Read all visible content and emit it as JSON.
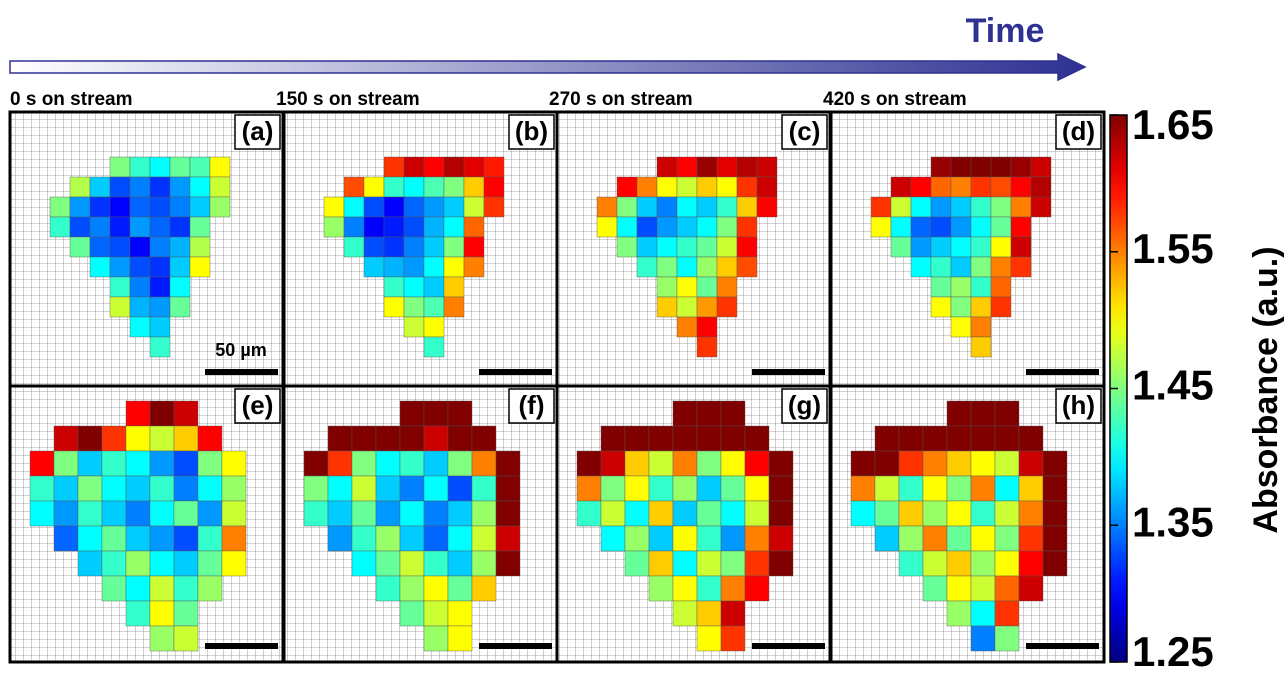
{
  "chart_data": {
    "type": "heatmap",
    "title": "Time",
    "colorbar_label": "Absorbance (a.u.)",
    "colormap": "jet",
    "zlim": [
      1.25,
      1.65
    ],
    "zticks": [
      1.25,
      1.35,
      1.45,
      1.55,
      1.65
    ],
    "scale_bar_label": "50 µm",
    "panels": [
      {
        "title": "0 s on stream",
        "label": "(a)",
        "values": [
          [
            null,
            null,
            null,
            1.45,
            1.42,
            1.4,
            1.44,
            1.43,
            1.5,
            null
          ],
          [
            null,
            1.47,
            1.38,
            1.33,
            1.35,
            1.32,
            1.36,
            1.4,
            1.48,
            null
          ],
          [
            1.45,
            1.36,
            1.32,
            1.3,
            1.34,
            1.33,
            1.35,
            1.38,
            1.46,
            null
          ],
          [
            1.42,
            1.33,
            1.35,
            1.31,
            1.36,
            1.34,
            1.32,
            1.44,
            null,
            null
          ],
          [
            null,
            1.44,
            1.34,
            1.33,
            1.3,
            1.35,
            1.37,
            1.47,
            null,
            null
          ],
          [
            null,
            null,
            1.4,
            1.36,
            1.33,
            1.32,
            1.38,
            1.5,
            null,
            null
          ],
          [
            null,
            null,
            null,
            1.42,
            1.35,
            1.31,
            1.4,
            null,
            null,
            null
          ],
          [
            null,
            null,
            null,
            1.48,
            1.37,
            1.36,
            1.44,
            null,
            null,
            null
          ],
          [
            null,
            null,
            null,
            null,
            1.4,
            1.38,
            null,
            null,
            null,
            null
          ],
          [
            null,
            null,
            null,
            null,
            null,
            1.42,
            null,
            null,
            null,
            null
          ]
        ]
      },
      {
        "title": "150 s on stream",
        "label": "(b)",
        "values": [
          [
            null,
            null,
            null,
            1.58,
            1.62,
            1.6,
            1.63,
            1.61,
            1.59,
            null
          ],
          [
            null,
            1.57,
            1.5,
            1.42,
            1.4,
            1.43,
            1.45,
            1.52,
            1.6,
            null
          ],
          [
            1.5,
            1.4,
            1.33,
            1.3,
            1.34,
            1.36,
            1.38,
            1.48,
            1.58,
            null
          ],
          [
            1.46,
            1.35,
            1.3,
            1.31,
            1.33,
            1.37,
            1.4,
            1.56,
            null,
            null
          ],
          [
            null,
            1.42,
            1.33,
            1.32,
            1.35,
            1.38,
            1.45,
            1.6,
            null,
            null
          ],
          [
            null,
            null,
            1.38,
            1.37,
            1.36,
            1.4,
            1.5,
            1.55,
            null,
            null
          ],
          [
            null,
            null,
            null,
            1.42,
            1.4,
            1.38,
            1.52,
            null,
            null,
            null
          ],
          [
            null,
            null,
            null,
            1.5,
            1.45,
            1.43,
            1.55,
            null,
            null,
            null
          ],
          [
            null,
            null,
            null,
            null,
            1.48,
            1.5,
            null,
            null,
            null,
            null
          ],
          [
            null,
            null,
            null,
            null,
            null,
            1.42,
            null,
            null,
            null,
            null
          ]
        ]
      },
      {
        "title": "270 s on stream",
        "label": "(c)",
        "values": [
          [
            null,
            null,
            null,
            1.62,
            1.6,
            1.64,
            1.61,
            1.63,
            1.62,
            null
          ],
          [
            null,
            1.6,
            1.55,
            1.5,
            1.48,
            1.52,
            1.5,
            1.58,
            1.62,
            null
          ],
          [
            1.55,
            1.45,
            1.38,
            1.35,
            1.4,
            1.38,
            1.42,
            1.52,
            1.6,
            null
          ],
          [
            1.5,
            1.4,
            1.33,
            1.36,
            1.38,
            1.4,
            1.45,
            1.58,
            null,
            null
          ],
          [
            null,
            1.45,
            1.38,
            1.4,
            1.42,
            1.44,
            1.48,
            1.6,
            null,
            null
          ],
          [
            null,
            null,
            1.42,
            1.45,
            1.4,
            1.46,
            1.52,
            1.57,
            null,
            null
          ],
          [
            null,
            null,
            null,
            1.46,
            1.5,
            1.44,
            1.55,
            null,
            null,
            null
          ],
          [
            null,
            null,
            null,
            1.52,
            1.48,
            1.54,
            1.58,
            null,
            null,
            null
          ],
          [
            null,
            null,
            null,
            null,
            1.55,
            1.6,
            null,
            null,
            null,
            null
          ],
          [
            null,
            null,
            null,
            null,
            null,
            1.58,
            null,
            null,
            null,
            null
          ]
        ]
      },
      {
        "title": "420 s on stream",
        "label": "(d)",
        "values": [
          [
            null,
            null,
            null,
            1.64,
            1.65,
            1.65,
            1.65,
            1.64,
            1.62,
            null
          ],
          [
            null,
            1.62,
            1.6,
            1.56,
            1.55,
            1.58,
            1.57,
            1.6,
            1.63,
            null
          ],
          [
            1.58,
            1.48,
            1.4,
            1.36,
            1.38,
            1.42,
            1.45,
            1.55,
            1.62,
            null
          ],
          [
            1.5,
            1.4,
            1.34,
            1.33,
            1.36,
            1.4,
            1.44,
            1.6,
            null,
            null
          ],
          [
            null,
            1.44,
            1.36,
            1.38,
            1.4,
            1.42,
            1.5,
            1.62,
            null,
            null
          ],
          [
            null,
            null,
            1.4,
            1.42,
            1.38,
            1.45,
            1.55,
            1.58,
            null,
            null
          ],
          [
            null,
            null,
            null,
            1.44,
            1.46,
            1.42,
            1.56,
            null,
            null,
            null
          ],
          [
            null,
            null,
            null,
            1.5,
            1.45,
            1.52,
            1.58,
            null,
            null,
            null
          ],
          [
            null,
            null,
            null,
            null,
            1.5,
            1.55,
            null,
            null,
            null,
            null
          ],
          [
            null,
            null,
            null,
            null,
            null,
            1.52,
            null,
            null,
            null,
            null
          ]
        ]
      },
      {
        "label": "(e)",
        "values": [
          [
            null,
            null,
            null,
            null,
            1.6,
            1.65,
            1.62,
            null,
            null,
            null
          ],
          [
            null,
            1.62,
            1.65,
            1.58,
            1.5,
            1.48,
            1.52,
            1.6,
            null,
            null
          ],
          [
            1.6,
            1.45,
            1.38,
            1.42,
            1.4,
            1.36,
            1.33,
            1.45,
            1.5,
            null
          ],
          [
            1.42,
            1.38,
            1.45,
            1.4,
            1.38,
            1.42,
            1.35,
            1.4,
            1.46,
            null
          ],
          [
            1.4,
            1.36,
            1.42,
            1.38,
            1.35,
            1.4,
            1.44,
            1.36,
            1.48,
            null
          ],
          [
            null,
            1.34,
            1.4,
            1.44,
            1.38,
            1.36,
            1.33,
            1.42,
            1.55,
            null
          ],
          [
            null,
            null,
            1.38,
            1.42,
            1.46,
            1.4,
            1.38,
            1.44,
            1.5,
            null
          ],
          [
            null,
            null,
            null,
            1.44,
            1.4,
            1.48,
            1.42,
            1.46,
            null,
            null
          ],
          [
            null,
            null,
            null,
            null,
            1.42,
            1.5,
            1.44,
            null,
            null,
            null
          ],
          [
            null,
            null,
            null,
            null,
            null,
            1.46,
            1.48,
            null,
            null,
            null
          ]
        ]
      },
      {
        "label": "(f)",
        "values": [
          [
            null,
            null,
            null,
            null,
            1.65,
            1.65,
            1.65,
            null,
            null,
            null
          ],
          [
            null,
            1.65,
            1.65,
            1.65,
            1.65,
            1.62,
            1.65,
            1.65,
            null,
            null
          ],
          [
            1.65,
            1.58,
            1.45,
            1.4,
            1.42,
            1.38,
            1.45,
            1.55,
            1.65,
            null
          ],
          [
            1.45,
            1.4,
            1.48,
            1.38,
            1.35,
            1.4,
            1.33,
            1.42,
            1.65,
            null
          ],
          [
            1.42,
            1.38,
            1.44,
            1.36,
            1.4,
            1.35,
            1.38,
            1.46,
            1.65,
            null
          ],
          [
            null,
            1.36,
            1.42,
            1.46,
            1.38,
            1.34,
            1.4,
            1.48,
            1.62,
            null
          ],
          [
            null,
            null,
            1.4,
            1.44,
            1.48,
            1.42,
            1.38,
            1.46,
            1.65,
            null
          ],
          [
            null,
            null,
            null,
            1.42,
            1.46,
            1.5,
            1.44,
            1.52,
            null,
            null
          ],
          [
            null,
            null,
            null,
            null,
            1.44,
            1.48,
            1.5,
            null,
            null,
            null
          ],
          [
            null,
            null,
            null,
            null,
            null,
            1.46,
            1.5,
            null,
            null,
            null
          ]
        ]
      },
      {
        "label": "(g)",
        "values": [
          [
            null,
            null,
            null,
            null,
            1.65,
            1.65,
            1.65,
            null,
            null,
            null
          ],
          [
            null,
            1.65,
            1.65,
            1.65,
            1.65,
            1.65,
            1.65,
            1.65,
            null,
            null
          ],
          [
            1.65,
            1.62,
            1.52,
            1.48,
            1.55,
            1.45,
            1.5,
            1.6,
            1.65,
            null
          ],
          [
            1.55,
            1.45,
            1.5,
            1.42,
            1.46,
            1.38,
            1.44,
            1.5,
            1.65,
            null
          ],
          [
            1.42,
            1.48,
            1.4,
            1.52,
            1.38,
            1.44,
            1.4,
            1.48,
            1.65,
            null
          ],
          [
            null,
            1.4,
            1.46,
            1.38,
            1.5,
            1.42,
            1.36,
            1.55,
            1.62,
            null
          ],
          [
            null,
            null,
            1.44,
            1.52,
            1.4,
            1.48,
            1.45,
            1.58,
            1.65,
            null
          ],
          [
            null,
            null,
            null,
            1.46,
            1.5,
            1.42,
            1.55,
            1.6,
            null,
            null
          ],
          [
            null,
            null,
            null,
            null,
            1.48,
            1.52,
            1.62,
            null,
            null,
            null
          ],
          [
            null,
            null,
            null,
            null,
            null,
            1.5,
            1.58,
            null,
            null,
            null
          ]
        ]
      },
      {
        "label": "(h)",
        "values": [
          [
            null,
            null,
            null,
            null,
            1.65,
            1.65,
            1.65,
            null,
            null,
            null
          ],
          [
            null,
            1.65,
            1.65,
            1.65,
            1.65,
            1.65,
            1.65,
            1.65,
            null,
            null
          ],
          [
            1.65,
            1.65,
            1.58,
            1.55,
            1.52,
            1.5,
            1.48,
            1.62,
            1.65,
            null
          ],
          [
            1.55,
            1.48,
            1.42,
            1.5,
            1.45,
            1.55,
            1.4,
            1.52,
            1.65,
            null
          ],
          [
            1.4,
            1.44,
            1.52,
            1.46,
            1.5,
            1.42,
            1.48,
            1.55,
            1.65,
            null
          ],
          [
            null,
            1.38,
            1.46,
            1.55,
            1.44,
            1.5,
            1.45,
            1.58,
            1.65,
            null
          ],
          [
            null,
            null,
            1.42,
            1.48,
            1.52,
            1.46,
            1.5,
            1.6,
            1.65,
            null
          ],
          [
            null,
            null,
            null,
            1.44,
            1.5,
            1.48,
            1.56,
            1.62,
            null,
            null
          ],
          [
            null,
            null,
            null,
            null,
            1.46,
            1.4,
            1.58,
            null,
            null,
            null
          ],
          [
            null,
            null,
            null,
            null,
            null,
            1.35,
            1.45,
            null,
            null,
            null
          ]
        ]
      }
    ]
  }
}
